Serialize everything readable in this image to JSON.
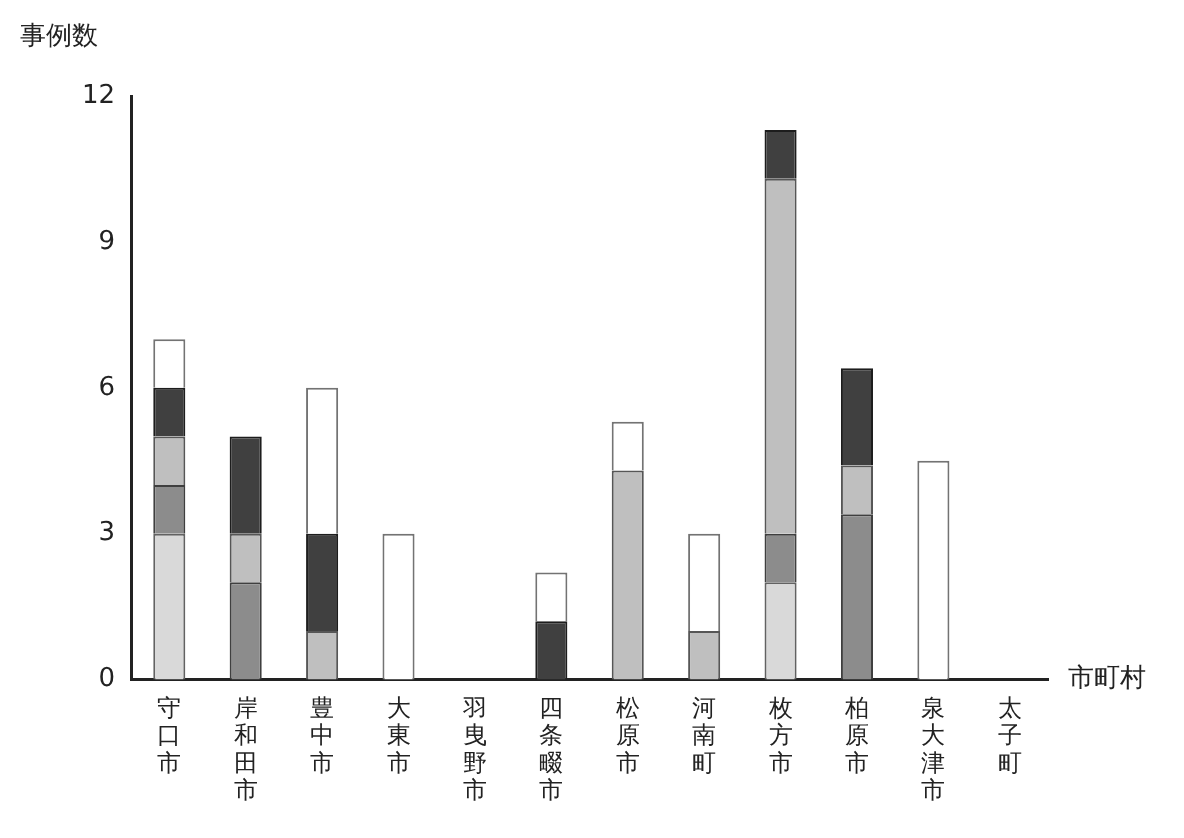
{
  "chart_data": {
    "type": "bar",
    "stacked": true,
    "ylabel": "事例数",
    "xlabel": "市町村",
    "categories": [
      "守口市",
      "岸和田市",
      "豊中市",
      "大東市",
      "羽曳野市",
      "四条畷市",
      "松原市",
      "河南町",
      "枚方市",
      "柏原市",
      "泉大津市",
      "太子町"
    ],
    "series": [
      {
        "color": "#d9d9d9",
        "values": [
          3,
          0,
          0,
          0,
          0,
          0,
          0,
          0,
          2,
          0,
          0,
          0
        ]
      },
      {
        "color": "#8c8c8c",
        "values": [
          1,
          2,
          0,
          0,
          0,
          0,
          0,
          0,
          1,
          3.4,
          0,
          0
        ]
      },
      {
        "color": "#bfbfbf",
        "values": [
          1,
          1,
          1,
          0,
          0,
          0,
          4.3,
          1,
          7.3,
          1,
          0,
          0
        ]
      },
      {
        "color": "#404040",
        "values": [
          1,
          2,
          2,
          0,
          0,
          1.2,
          0,
          0,
          1,
          2,
          0,
          0
        ]
      },
      {
        "color": "#ffffff",
        "values": [
          1,
          0,
          3,
          3,
          0,
          1,
          1,
          2,
          0,
          0,
          4.5,
          0
        ]
      }
    ],
    "ylim": [
      0,
      12
    ],
    "yticks": [
      0,
      3,
      6,
      9,
      12
    ],
    "grid": false,
    "legend": false
  }
}
